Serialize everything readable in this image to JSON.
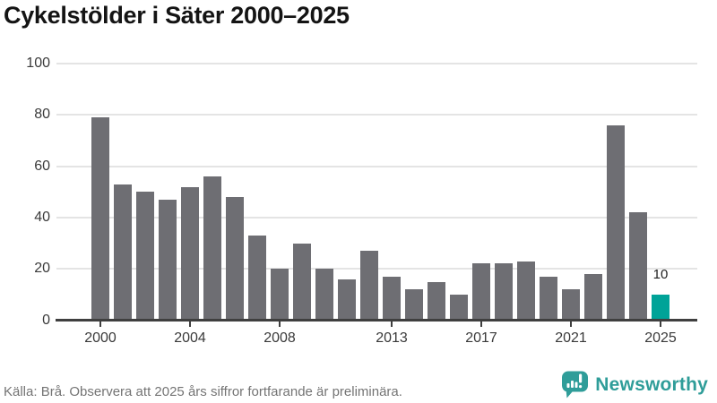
{
  "title": "Cykelstölder i Säter 2000–2025",
  "chart_data": {
    "type": "bar",
    "title": "Cykelstölder i Säter 2000–2025",
    "categories": [
      "2000",
      "2001",
      "2002",
      "2003",
      "2004",
      "2005",
      "2006",
      "2007",
      "2008",
      "2009",
      "2010",
      "2011",
      "2012",
      "2013",
      "2014",
      "2015",
      "2016",
      "2017",
      "2018",
      "2019",
      "2020",
      "2021",
      "2022",
      "2023",
      "2024",
      "2025"
    ],
    "values": [
      79,
      53,
      50,
      47,
      52,
      56,
      48,
      33,
      20,
      30,
      20,
      16,
      27,
      17,
      12,
      15,
      10,
      22,
      22,
      23,
      17,
      12,
      18,
      76,
      42,
      10
    ],
    "xlabel": "",
    "ylabel": "",
    "ylim": [
      0,
      100
    ],
    "yticks": [
      0,
      20,
      40,
      60,
      80,
      100
    ],
    "xtick_labels": [
      "2000",
      "2004",
      "2008",
      "2013",
      "2017",
      "2021",
      "2025"
    ],
    "grid": true,
    "legend_position": "none",
    "bar_color": "#6e6e73",
    "highlight": {
      "category": "2025",
      "color": "#00a398",
      "value_label": "10"
    }
  },
  "footer": {
    "source_note": "Källa: Brå. Observera att 2025 års siffror fortfarande är preliminära."
  },
  "branding": {
    "wordmark": "Newsworthy",
    "icon": "newsworthy-speech-bubble-chart-icon",
    "color": "#2f9d99"
  }
}
